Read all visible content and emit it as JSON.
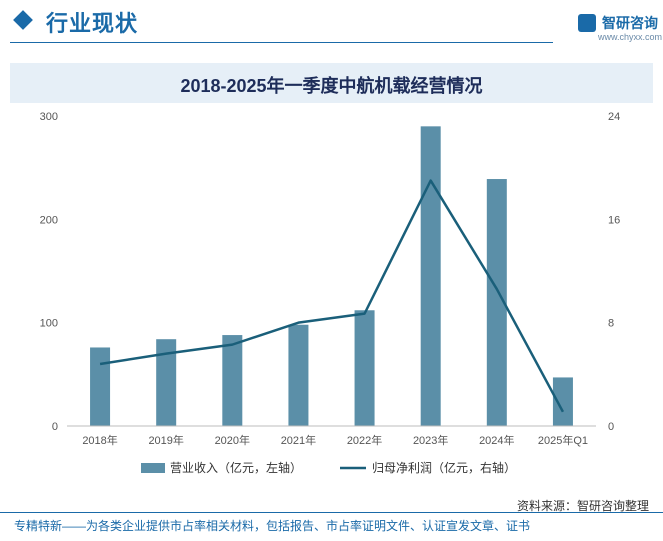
{
  "header": {
    "section_title": "行业现状",
    "logo_name": "智研咨询",
    "logo_url": "www.chyxx.com"
  },
  "colors": {
    "bar": "#5b8fa8",
    "line": "#1a5f7a",
    "axis": "#555555",
    "accent": "#1a6aa8",
    "title_band": "#e6eff7"
  },
  "chart_data": {
    "type": "bar",
    "title": "2018-2025年一季度中航机载经营情况",
    "categories": [
      "2018年",
      "2019年",
      "2020年",
      "2021年",
      "2022年",
      "2023年",
      "2024年",
      "2025年Q1"
    ],
    "series": [
      {
        "name": "营业收入（亿元，左轴）",
        "type": "bar",
        "axis": "left",
        "values": [
          76,
          84,
          88,
          98,
          112,
          290,
          239,
          47
        ]
      },
      {
        "name": "归母净利润（亿元，右轴）",
        "type": "line",
        "axis": "right",
        "values": [
          4.8,
          5.6,
          6.3,
          8.0,
          8.7,
          19.0,
          10.6,
          1.1
        ]
      }
    ],
    "y_left": {
      "min": 0,
      "max": 300,
      "ticks": [
        "0",
        "100",
        "200",
        "300"
      ]
    },
    "y_right": {
      "min": 0,
      "max": 24,
      "ticks": [
        "0",
        "8",
        "16",
        "24"
      ]
    },
    "legend_position": "bottom",
    "grid": false
  },
  "source": "资料来源：智研咨询整理",
  "footer": "专精特新——为各类企业提供市占率相关材料，包括报告、市占率证明文件、认证宣发文章、证书"
}
